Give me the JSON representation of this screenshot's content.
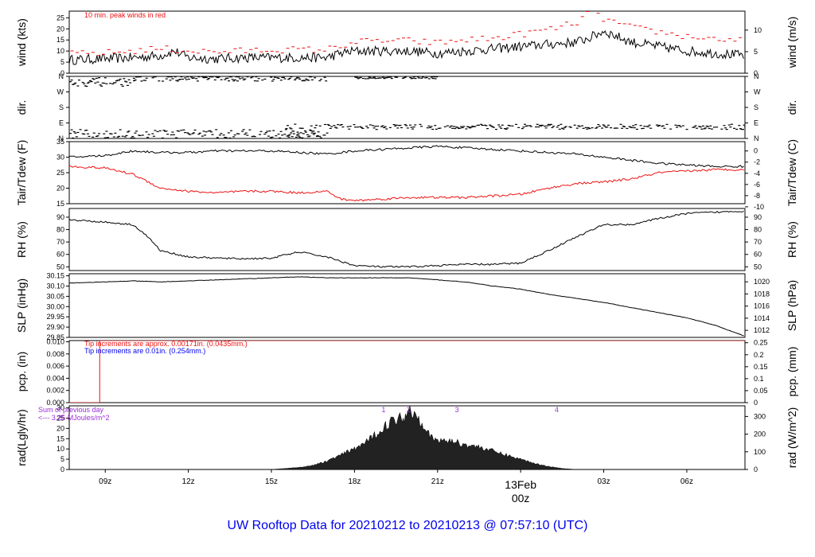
{
  "title": "UW Rooftop Data for 20210212  to  20210213 @ 07:57:10  (UTC)",
  "colors": {
    "title": "#0000ee",
    "red": "#ee1111",
    "blue": "#0000ee",
    "purple": "#9b30d9",
    "frame": "#000000"
  },
  "x_axis": {
    "range_hours": [
      7.7,
      32.1
    ],
    "ticks": [
      {
        "h": 9,
        "label": "09z"
      },
      {
        "h": 12,
        "label": "12z"
      },
      {
        "h": 15,
        "label": "15z"
      },
      {
        "h": 18,
        "label": "18z"
      },
      {
        "h": 21,
        "label": "21z"
      },
      {
        "h": 27,
        "label": "03z"
      },
      {
        "h": 30,
        "label": "06z"
      }
    ],
    "day_marker": {
      "h": 24,
      "date": "13Feb",
      "time": "00z"
    }
  },
  "chart_data": [
    {
      "id": "wind",
      "type": "line",
      "ylabel_left": "wind (kts)",
      "ylabel_right": "wind (m/s)",
      "ylim": [
        0,
        28
      ],
      "yticks_left": [
        "0",
        "5",
        "10",
        "15",
        "20",
        "25"
      ],
      "yticks_right": [
        {
          "v": 0,
          "label": "0"
        },
        {
          "v": 5,
          "label": "5"
        },
        {
          "v": 10,
          "label": "10"
        }
      ],
      "annotation": "10 min. peak winds in red",
      "series": [
        {
          "role": "mean",
          "color": "#000000",
          "x": [
            7.7,
            9,
            10,
            11,
            11.5,
            12,
            13,
            14,
            15,
            16,
            17,
            17.5,
            18,
            19,
            20,
            21,
            22,
            23,
            24,
            25,
            26,
            26.5,
            27,
            28,
            29,
            30,
            31,
            32.1
          ],
          "y": [
            6,
            6.5,
            7,
            8,
            10,
            7,
            6.5,
            7,
            7,
            7,
            7,
            9,
            10,
            10,
            10,
            9,
            10,
            11,
            12,
            13,
            14,
            16,
            19,
            14,
            12,
            10,
            9,
            8
          ]
        },
        {
          "role": "peak",
          "color": "#ee1111",
          "x": [
            7.7,
            9,
            10,
            11,
            12,
            13,
            14,
            15,
            16,
            17,
            18,
            19,
            20,
            21,
            22,
            23,
            24,
            25,
            26,
            26.5,
            27,
            28,
            29,
            30,
            31,
            32.1
          ],
          "y": [
            8,
            8.5,
            9.5,
            10.5,
            9.5,
            9,
            9.5,
            10,
            10,
            10,
            13.5,
            14,
            14,
            13,
            14.5,
            15,
            17,
            19,
            22,
            27,
            24,
            20,
            18,
            16,
            15,
            14
          ]
        }
      ]
    },
    {
      "id": "dir",
      "type": "scatter",
      "ylabel_left": "dir.",
      "ylabel_right": "dir.",
      "ylim": [
        0,
        360
      ],
      "yticks": [
        {
          "v": 0,
          "label": "N"
        },
        {
          "v": 90,
          "label": "E"
        },
        {
          "v": 180,
          "label": "S"
        },
        {
          "v": 270,
          "label": "W"
        },
        {
          "v": 360,
          "label": "N"
        }
      ],
      "segments": [
        {
          "x0": 7.7,
          "x1": 17,
          "center": 30,
          "spread": 25
        },
        {
          "x0": 7.7,
          "x1": 10,
          "center": 330,
          "spread": 25
        },
        {
          "x0": 10,
          "x1": 17,
          "center": 350,
          "spread": 15
        },
        {
          "x0": 18,
          "x1": 21,
          "center": 355,
          "spread": 6
        },
        {
          "x0": 15.5,
          "x1": 17,
          "center": 50,
          "spread": 40
        },
        {
          "x0": 17,
          "x1": 32.1,
          "center": 70,
          "spread": 15
        }
      ]
    },
    {
      "id": "temp",
      "type": "line",
      "ylabel_left": "Tair/Tdew (F)",
      "ylabel_right": "Tair/Tdew (C)",
      "ylim": [
        15,
        35
      ],
      "yticks_left": [
        "15",
        "20",
        "25",
        "30",
        "35"
      ],
      "yticks_right": [
        {
          "v": -10,
          "label": "-10"
        },
        {
          "v": -8,
          "label": "-8"
        },
        {
          "v": -6,
          "label": "-6"
        },
        {
          "v": -4,
          "label": "-4"
        },
        {
          "v": -2,
          "label": "-2"
        },
        {
          "v": 0,
          "label": "0"
        }
      ],
      "series": [
        {
          "name": "Tair",
          "color": "#000000",
          "x": [
            7.7,
            9,
            10,
            11,
            12,
            13,
            14,
            15,
            16,
            17,
            18,
            19,
            20,
            21,
            22,
            23,
            24,
            25,
            26,
            27,
            28,
            29,
            30,
            31,
            32.1
          ],
          "y": [
            30,
            30.5,
            32,
            31.5,
            31.5,
            32,
            32,
            32,
            31.5,
            31,
            32,
            32.5,
            33,
            33.5,
            33,
            32.5,
            32,
            31.5,
            31,
            30,
            29,
            28,
            27.5,
            27,
            27
          ]
        },
        {
          "name": "Tdew",
          "color": "#ee1111",
          "x": [
            7.7,
            9,
            10,
            11,
            12,
            13,
            14,
            15,
            16,
            17,
            17.5,
            18,
            19,
            20,
            21,
            22,
            23,
            24,
            25,
            26,
            27,
            28,
            29,
            30,
            31,
            32.1
          ],
          "y": [
            27,
            26.5,
            24.5,
            20,
            19,
            18.5,
            19,
            19,
            18.5,
            19,
            16.5,
            16,
            16.5,
            17,
            17,
            17,
            17.5,
            18,
            20,
            21.5,
            22,
            23,
            25,
            25.5,
            26,
            26
          ]
        }
      ]
    },
    {
      "id": "rh",
      "type": "line",
      "ylabel_left": "RH (%)",
      "ylabel_right": "RH (%)",
      "ylim": [
        47,
        97
      ],
      "yticks_left": [
        "50",
        "60",
        "70",
        "80",
        "90"
      ],
      "yticks_right": [
        {
          "v": 50,
          "label": "50"
        },
        {
          "v": 60,
          "label": "60"
        },
        {
          "v": 70,
          "label": "70"
        },
        {
          "v": 80,
          "label": "80"
        },
        {
          "v": 90,
          "label": "90"
        }
      ],
      "series": [
        {
          "name": "RH",
          "color": "#000000",
          "x": [
            7.7,
            9,
            10,
            10.5,
            11,
            12,
            13,
            14,
            15,
            16,
            17,
            18,
            19,
            20,
            21,
            22,
            23,
            24,
            25,
            26,
            27,
            28,
            29,
            30,
            31,
            32.1
          ],
          "y": [
            88,
            86,
            84,
            75,
            63,
            58,
            57,
            56.5,
            57,
            62,
            58,
            51,
            50,
            50,
            51,
            52,
            52,
            53,
            63,
            74,
            84,
            84,
            89,
            93,
            94,
            95
          ]
        }
      ]
    },
    {
      "id": "slp",
      "type": "line",
      "ylabel_left": "SLP (inHg)",
      "ylabel_right": "SLP (hPa)",
      "ylim": [
        29.85,
        30.16
      ],
      "yticks_left": [
        "29.85",
        "29.90",
        "29.95",
        "30.00",
        "30.05",
        "30.10",
        "30.15"
      ],
      "yticks_right": [
        {
          "v": 1012,
          "label": "1012"
        },
        {
          "v": 1014,
          "label": "1014"
        },
        {
          "v": 1016,
          "label": "1016"
        },
        {
          "v": 1018,
          "label": "1018"
        },
        {
          "v": 1020,
          "label": "1020"
        }
      ],
      "series": [
        {
          "name": "SLP",
          "color": "#000000",
          "x": [
            7.7,
            9,
            10,
            11,
            12,
            13,
            14,
            15,
            16,
            17,
            18,
            19,
            20,
            21,
            22,
            23,
            24,
            25,
            26,
            27,
            28,
            29,
            30,
            31,
            32.1
          ],
          "y": [
            30.115,
            30.12,
            30.125,
            30.12,
            30.125,
            30.13,
            30.135,
            30.14,
            30.145,
            30.14,
            30.14,
            30.14,
            30.14,
            30.13,
            30.12,
            30.1,
            30.085,
            30.06,
            30.04,
            30.02,
            29.995,
            29.97,
            29.945,
            29.91,
            29.855
          ]
        }
      ]
    },
    {
      "id": "pcp",
      "type": "line",
      "ylabel_left": "pcp. (in)",
      "ylabel_right": "pcp. (mm)",
      "ylim": [
        0,
        0.0102
      ],
      "yticks_left": [
        "0.000",
        "0.002",
        "0.004",
        "0.006",
        "0.008",
        "0.010"
      ],
      "yticks_right": [
        {
          "v": 0,
          "label": "0"
        },
        {
          "v": 0.05,
          "label": "0.05"
        },
        {
          "v": 0.1,
          "label": "0.1"
        },
        {
          "v": 0.15,
          "label": "0.15"
        },
        {
          "v": 0.2,
          "label": "0.2"
        },
        {
          "v": 0.25,
          "label": "0.25"
        }
      ],
      "annotations": [
        "Tip increments are approx. 0.00171in. (0.0435mm.)",
        "Tip increments are 0.01in. (0.254mm.)"
      ],
      "series": [
        {
          "name": "precip",
          "color": "#ee1111",
          "x": [
            7.7,
            8.8,
            8.8,
            32.1
          ],
          "y": [
            0,
            0,
            0.0102,
            0.0102
          ]
        }
      ]
    },
    {
      "id": "rad",
      "type": "area",
      "ylabel_left": "rad(Lgly/hr)",
      "ylabel_right": "rad (W/m^2)",
      "ylim": [
        0,
        31
      ],
      "yticks_left": [
        "0",
        "5",
        "10",
        "15",
        "20",
        "25",
        "30"
      ],
      "yticks_right": [
        {
          "v": 0,
          "label": "0"
        },
        {
          "v": 100,
          "label": "100"
        },
        {
          "v": 200,
          "label": "200"
        },
        {
          "v": 300,
          "label": "300"
        }
      ],
      "annotations": [
        "Sum of previous day",
        "<--- 3.25 MJoules/m^2"
      ],
      "markers": [
        {
          "h": 19.05,
          "label": "1"
        },
        {
          "h": 19.95,
          "label": "2"
        },
        {
          "h": 21.7,
          "label": "3"
        },
        {
          "h": 25.3,
          "label": "4"
        }
      ],
      "series": [
        {
          "name": "radiation",
          "color": "#222222",
          "x": [
            15,
            16,
            16.5,
            17,
            17.5,
            18,
            18.5,
            19,
            19.3,
            19.6,
            19.8,
            20,
            20.2,
            20.5,
            20.8,
            21,
            21.5,
            22,
            22.5,
            23,
            23.5,
            24,
            24.5,
            25,
            25.5,
            26,
            27
          ],
          "y": [
            0,
            1,
            2,
            4,
            7,
            10,
            14,
            20,
            23,
            25,
            26,
            29,
            27,
            22,
            15,
            14,
            14,
            12,
            11,
            9,
            7,
            5,
            3,
            1.5,
            0.5,
            0,
            0
          ]
        }
      ]
    }
  ]
}
